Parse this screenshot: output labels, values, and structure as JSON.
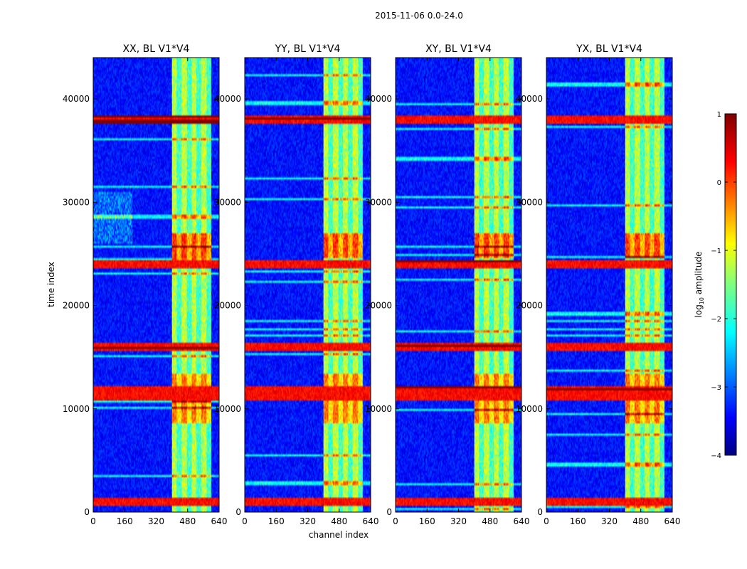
{
  "chart_data": {
    "type": "heatmap",
    "suptitle": "2015-11-06 0.0-24.0",
    "xlabel": "channel index",
    "ylabel": "time index",
    "xlim": [
      0,
      640
    ],
    "ylim": [
      0,
      44000
    ],
    "x_ticks": [
      "0",
      "160",
      "320",
      "480",
      "640"
    ],
    "y_ticks": [
      "0",
      "10000",
      "20000",
      "30000",
      "40000"
    ],
    "x_tick_values": [
      0,
      160,
      320,
      480,
      640
    ],
    "y_tick_values": [
      0,
      10000,
      20000,
      30000,
      40000
    ],
    "panels": [
      {
        "title": "XX, BL V1*V4"
      },
      {
        "title": "YY, BL V1*V4"
      },
      {
        "title": "XY, BL V1*V4"
      },
      {
        "title": "YX, BL V1*V4"
      }
    ],
    "colorbar": {
      "label_prefix": "log",
      "label_sub": "10",
      "label_suffix": " amplitude",
      "range": [
        -4,
        1
      ],
      "ticks": [
        "1",
        "0",
        "−1",
        "−2",
        "−3",
        "−4"
      ],
      "tick_values": [
        1,
        0,
        -1,
        -2,
        -3,
        -4
      ],
      "colormap": "jet"
    },
    "hot_channel_band": [
      400,
      600
    ],
    "bright_time_rows": [
      1000,
      11500,
      16000,
      24000,
      38000
    ]
  }
}
